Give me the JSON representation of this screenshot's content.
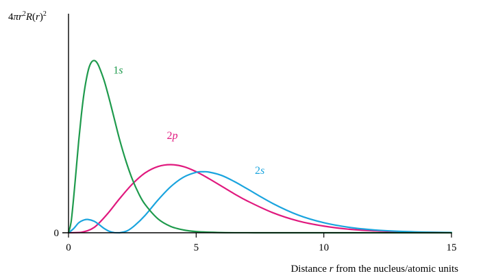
{
  "chart_data": {
    "type": "line",
    "title": "",
    "xlabel_parts": {
      "before": "Distance ",
      "variable": "r",
      "after": " from the nucleus/atomic units"
    },
    "ylabel_parts": {
      "prefix": "4",
      "pi": "π",
      "r": "r",
      "sq": "2",
      "R": "R",
      "open": "(",
      "arg": "r",
      "close": ")",
      "sq2": "2"
    },
    "xlim": [
      0,
      15
    ],
    "ylim": [
      0,
      0.56
    ],
    "x_ticks": [
      {
        "value": 0,
        "label": "0"
      },
      {
        "value": 5,
        "label": "5"
      },
      {
        "value": 10,
        "label": "10"
      },
      {
        "value": 15,
        "label": "15"
      }
    ],
    "y_ticks": [
      {
        "value": 0,
        "label": "0"
      }
    ],
    "grid": false,
    "series": [
      {
        "name": "1s",
        "name_digit": "1",
        "name_letter": "s",
        "color": "#1e9a4c",
        "label_at": {
          "x": 1.75,
          "y": 0.5
        },
        "x": [
          0,
          0.1,
          0.2,
          0.3,
          0.4,
          0.5,
          0.6,
          0.7,
          0.8,
          0.9,
          1.0,
          1.1,
          1.2,
          1.4,
          1.6,
          1.8,
          2.0,
          2.25,
          2.5,
          2.75,
          3.0,
          3.5,
          4.0,
          4.5,
          5.0,
          6.0,
          7.0,
          8.0,
          10.0,
          12.0,
          15.0
        ],
        "values": [
          0,
          0.033,
          0.109,
          0.198,
          0.289,
          0.368,
          0.434,
          0.483,
          0.518,
          0.536,
          0.541,
          0.536,
          0.521,
          0.477,
          0.419,
          0.356,
          0.293,
          0.225,
          0.168,
          0.123,
          0.089,
          0.044,
          0.02,
          0.0089,
          0.0038,
          0.0006,
          0.0001,
          0,
          0,
          0,
          0
        ]
      },
      {
        "name": "2p",
        "name_digit": "2",
        "name_letter": "p",
        "color": "#e0197e",
        "label_at": {
          "x": 3.85,
          "y": 0.295
        },
        "x": [
          0,
          0.5,
          1.0,
          1.5,
          2.0,
          2.5,
          3.0,
          3.5,
          4.0,
          4.5,
          5.0,
          5.5,
          6.0,
          6.5,
          7.0,
          8.0,
          9.0,
          10.0,
          11.0,
          12.0,
          13.0,
          14.0,
          15.0
        ],
        "values": [
          0,
          0.0015,
          0.0165,
          0.057,
          0.107,
          0.153,
          0.188,
          0.208,
          0.214,
          0.208,
          0.192,
          0.17,
          0.146,
          0.122,
          0.1,
          0.063,
          0.037,
          0.021,
          0.011,
          0.006,
          0.003,
          0.0013,
          0.0007
        ]
      },
      {
        "name": "2s",
        "name_digit": "2",
        "name_letter": "s",
        "color": "#1aa4de",
        "label_at": {
          "x": 7.3,
          "y": 0.185
        },
        "x": [
          0,
          0.2,
          0.4,
          0.6,
          0.764,
          1.0,
          1.2,
          1.4,
          1.6,
          1.8,
          2.0,
          2.3,
          2.6,
          3.0,
          3.5,
          4.0,
          4.5,
          5.0,
          5.24,
          5.5,
          6.0,
          6.5,
          7.0,
          8.0,
          9.0,
          10.0,
          11.0,
          12.0,
          13.0,
          14.0,
          15.0
        ],
        "values": [
          0,
          0.0131,
          0.0313,
          0.04,
          0.0417,
          0.0364,
          0.0255,
          0.0133,
          0.0045,
          0.0004,
          0,
          0.0061,
          0.0232,
          0.0546,
          0.1025,
          0.1445,
          0.1744,
          0.19,
          0.1916,
          0.1906,
          0.18,
          0.1607,
          0.138,
          0.092,
          0.0555,
          0.0315,
          0.0169,
          0.0087,
          0.0043,
          0.002,
          0.0009
        ]
      }
    ]
  }
}
